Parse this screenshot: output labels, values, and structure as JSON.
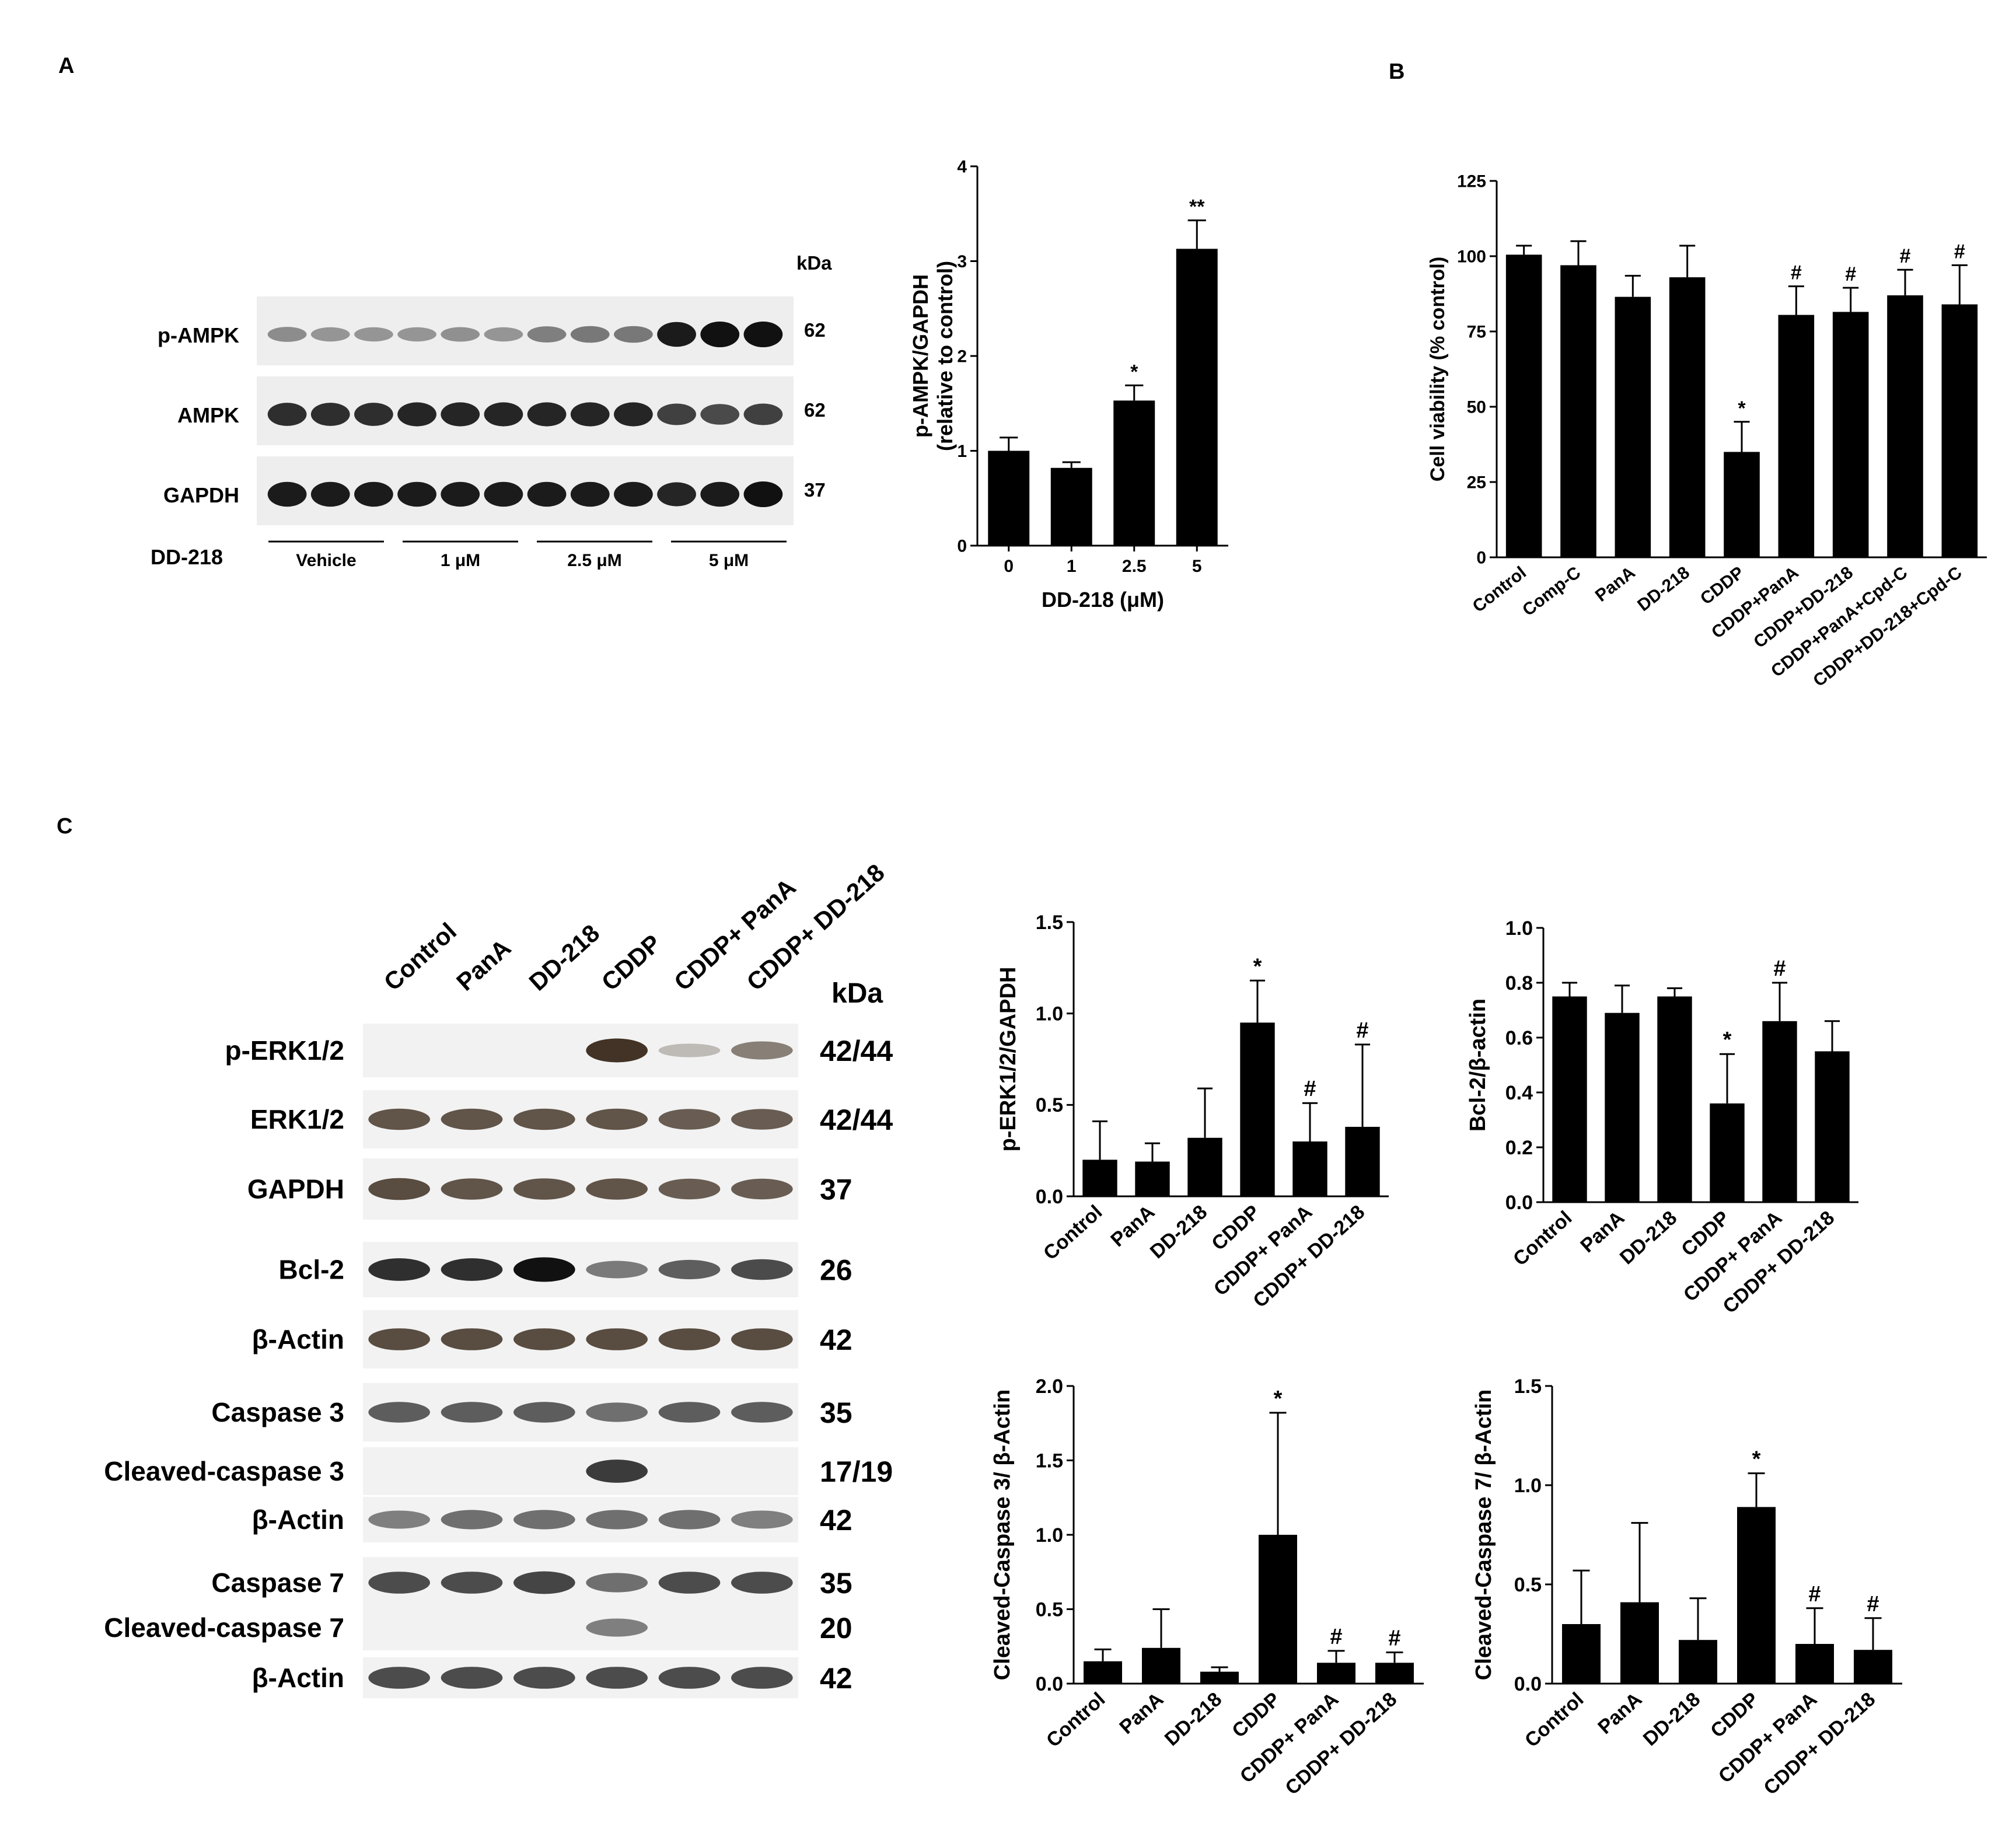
{
  "panels": {
    "A": {
      "letter": "A",
      "blot": {
        "kda_header": "kDa",
        "rows": [
          {
            "label": "p-AMPK",
            "kda": "62",
            "intensities": [
              0.35,
              0.3,
              0.3,
              0.3,
              0.32,
              0.3,
              0.42,
              0.45,
              0.45,
              0.95,
              1.0,
              1.0
            ]
          },
          {
            "label": "AMPK",
            "kda": "62",
            "intensities": [
              0.85,
              0.85,
              0.85,
              0.9,
              0.9,
              0.9,
              0.9,
              0.9,
              0.9,
              0.75,
              0.7,
              0.75
            ]
          },
          {
            "label": "GAPDH",
            "kda": "37",
            "intensities": [
              0.95,
              0.95,
              0.95,
              0.95,
              0.95,
              0.95,
              0.95,
              0.95,
              0.95,
              0.9,
              0.95,
              1.0
            ]
          }
        ],
        "treatment_label": "DD-218",
        "groups": [
          "Vehicle",
          "1 μM",
          "2.5 μM",
          "5 μM"
        ]
      }
    },
    "B": {
      "letter": "B"
    },
    "C": {
      "letter": "C",
      "blot": {
        "kda_header": "kDa",
        "lanes": [
          "Control",
          "PanA",
          "DD-218",
          "CDDP",
          "CDDP+ PanA",
          "CDDP+ DD-218"
        ],
        "rows": [
          {
            "label": "p-ERK1/2",
            "kda": "42/44",
            "intensities": [
              0,
              0,
              0,
              0.95,
              0.15,
              0.5
            ],
            "tone": "brown"
          },
          {
            "label": "ERK1/2",
            "kda": "42/44",
            "intensities": [
              0.75,
              0.75,
              0.75,
              0.75,
              0.7,
              0.7
            ],
            "tone": "brown"
          },
          {
            "label": "GAPDH",
            "kda": "37",
            "intensities": [
              0.8,
              0.75,
              0.75,
              0.75,
              0.7,
              0.7
            ],
            "tone": "brown"
          },
          {
            "label": "Bcl-2",
            "kda": "26",
            "intensities": [
              0.85,
              0.85,
              1.0,
              0.45,
              0.6,
              0.7
            ],
            "tone": "dark"
          },
          {
            "label": "β-Actin",
            "kda": "42",
            "intensities": [
              0.8,
              0.8,
              0.8,
              0.8,
              0.8,
              0.8
            ],
            "tone": "brown"
          },
          {
            "label": "Caspase 3",
            "kda": "35",
            "intensities": [
              0.7,
              0.7,
              0.7,
              0.6,
              0.7,
              0.7
            ],
            "tone": "gray"
          },
          {
            "label": "Cleaved-caspase 3",
            "kda": "17/19",
            "intensities": [
              0,
              0,
              0,
              0.9,
              0,
              0
            ],
            "tone": "gray"
          },
          {
            "label": "β-Actin",
            "kda": "42",
            "intensities": [
              0.5,
              0.6,
              0.6,
              0.6,
              0.6,
              0.5
            ],
            "tone": "gray"
          },
          {
            "label": "Caspase 7",
            "kda": "35",
            "intensities": [
              0.8,
              0.8,
              0.85,
              0.6,
              0.8,
              0.8
            ],
            "tone": "gray"
          },
          {
            "label": "Cleaved-caspase 7",
            "kda": "20",
            "intensities": [
              0,
              0,
              0,
              0.5,
              0,
              0
            ],
            "tone": "gray"
          },
          {
            "label": "β-Actin",
            "kda": "42",
            "intensities": [
              0.8,
              0.8,
              0.8,
              0.8,
              0.8,
              0.8
            ],
            "tone": "gray"
          }
        ]
      }
    }
  },
  "chart_data": [
    {
      "id": "pampk",
      "panel": "A",
      "type": "bar",
      "categories": [
        "0",
        "1",
        "2.5",
        "5"
      ],
      "values": [
        1.0,
        0.82,
        1.53,
        3.13
      ],
      "errors": [
        0.14,
        0.06,
        0.16,
        0.3
      ],
      "annotations": [
        "",
        "",
        "*",
        "**"
      ],
      "ylabel": [
        "p-AMPK/GAPDH",
        "(relative to control)"
      ],
      "xlabel": "DD-218 (μM)",
      "ylim": [
        0,
        4
      ],
      "yticks": [
        "0",
        "1",
        "2",
        "3",
        "4"
      ],
      "xtick_rotation": 0
    },
    {
      "id": "viability",
      "panel": "B",
      "type": "bar",
      "categories": [
        "Control",
        "Comp-C",
        "PanA",
        "DD-218",
        "CDDP",
        "CDDP+PanA",
        "CDDP+DD-218",
        "CDDP+PanA+Cpd-C",
        "CDDP+DD-218+Cpd-C"
      ],
      "values": [
        100.5,
        97,
        86.5,
        93,
        35,
        80.5,
        81.5,
        87,
        84
      ],
      "errors": [
        3,
        8,
        7,
        10.5,
        10,
        9.5,
        8,
        8.5,
        13
      ],
      "annotations": [
        "",
        "",
        "",
        "",
        "*",
        "#",
        "#",
        "#",
        "#"
      ],
      "ylabel": [
        "Cell viability (% control)"
      ],
      "xlabel": "",
      "ylim": [
        0,
        125
      ],
      "yticks": [
        "0",
        "25",
        "50",
        "75",
        "100",
        "125"
      ],
      "xtick_rotation": -38
    },
    {
      "id": "perk",
      "panel": "C",
      "type": "bar",
      "categories": [
        "Control",
        "PanA",
        "DD-218",
        "CDDP",
        "CDDP+ PanA",
        "CDDP+ DD-218"
      ],
      "values": [
        0.2,
        0.19,
        0.32,
        0.95,
        0.3,
        0.38
      ],
      "errors": [
        0.21,
        0.1,
        0.27,
        0.23,
        0.21,
        0.45
      ],
      "annotations": [
        "",
        "",
        "",
        "*",
        "#",
        "#"
      ],
      "ylabel": [
        "p-ERK1/2/GAPDH"
      ],
      "xlabel": "",
      "ylim": [
        0,
        1.5
      ],
      "yticks": [
        "0.0",
        "0.5",
        "1.0",
        "1.5"
      ],
      "xtick_rotation": -42
    },
    {
      "id": "bcl2",
      "panel": "C",
      "type": "bar",
      "categories": [
        "Control",
        "PanA",
        "DD-218",
        "CDDP",
        "CDDP+ PanA",
        "CDDP+ DD-218"
      ],
      "values": [
        0.75,
        0.69,
        0.75,
        0.36,
        0.66,
        0.55
      ],
      "errors": [
        0.05,
        0.1,
        0.03,
        0.18,
        0.14,
        0.11
      ],
      "annotations": [
        "",
        "",
        "",
        "*",
        "#",
        ""
      ],
      "ylabel": [
        "Bcl-2/β-actin"
      ],
      "xlabel": "",
      "ylim": [
        0,
        1.0
      ],
      "yticks": [
        "0.0",
        "0.2",
        "0.4",
        "0.6",
        "0.8",
        "1.0"
      ],
      "xtick_rotation": -42
    },
    {
      "id": "cc3",
      "panel": "C",
      "type": "bar",
      "categories": [
        "Control",
        "PanA",
        "DD-218",
        "CDDP",
        "CDDP+ PanA",
        "CDDP+ DD-218"
      ],
      "values": [
        0.15,
        0.24,
        0.08,
        1.0,
        0.14,
        0.14
      ],
      "errors": [
        0.08,
        0.26,
        0.03,
        0.82,
        0.08,
        0.07
      ],
      "annotations": [
        "",
        "",
        "",
        "*",
        "#",
        "#"
      ],
      "ylabel": [
        "Cleaved-Caspase 3/ β-Actin"
      ],
      "xlabel": "",
      "ylim": [
        0,
        2.0
      ],
      "yticks": [
        "0.0",
        "0.5",
        "1.0",
        "1.5",
        "2.0"
      ],
      "xtick_rotation": -42
    },
    {
      "id": "cc7",
      "panel": "C",
      "type": "bar",
      "categories": [
        "Control",
        "PanA",
        "DD-218",
        "CDDP",
        "CDDP+ PanA",
        "CDDP+ DD-218"
      ],
      "values": [
        0.3,
        0.41,
        0.22,
        0.89,
        0.2,
        0.17
      ],
      "errors": [
        0.27,
        0.4,
        0.21,
        0.17,
        0.18,
        0.16
      ],
      "annotations": [
        "",
        "",
        "",
        "*",
        "#",
        "#"
      ],
      "ylabel": [
        "Cleaved-Caspase 7/ β-Actin"
      ],
      "xlabel": "",
      "ylim": [
        0,
        1.5
      ],
      "yticks": [
        "0.0",
        "0.5",
        "1.0",
        "1.5"
      ],
      "xtick_rotation": -42
    }
  ]
}
